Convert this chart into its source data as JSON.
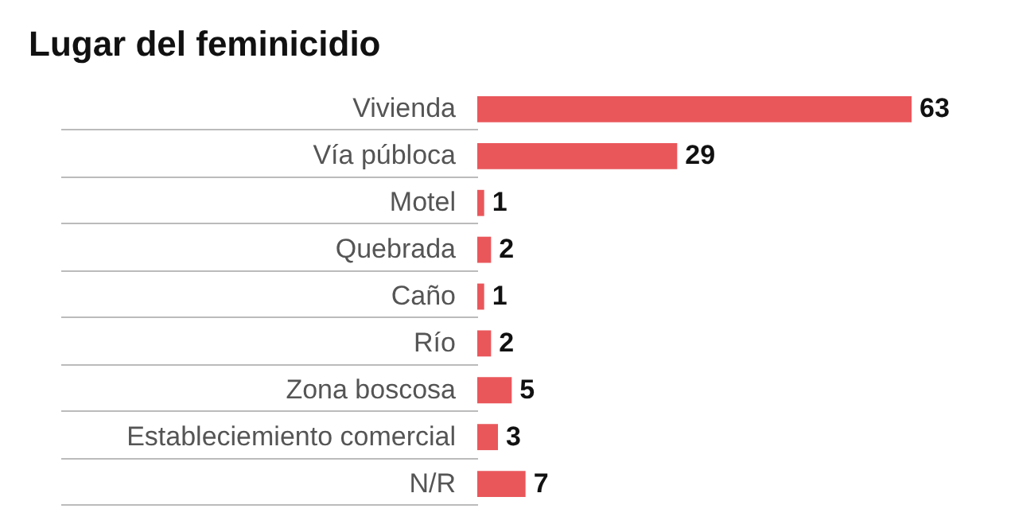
{
  "chart_data": {
    "type": "bar",
    "orientation": "horizontal",
    "title": "Lugar del feminicidio",
    "categories": [
      "Vivienda",
      "Vía públoca",
      "Motel",
      "Quebrada",
      "Caño",
      "Río",
      "Zona boscosa",
      "Estableciemiento comercial",
      "N/R"
    ],
    "values": [
      63,
      29,
      1,
      2,
      1,
      2,
      5,
      3,
      7
    ],
    "color": "#e9575b",
    "data_labels": true
  }
}
